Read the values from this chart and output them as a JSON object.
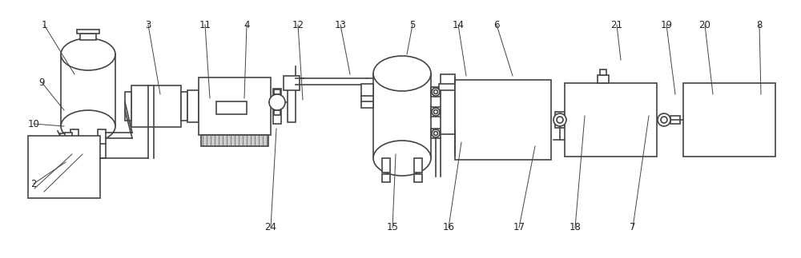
{
  "bg_color": "#ffffff",
  "line_color": "#444444",
  "line_width": 1.2,
  "thin_line": 0.7,
  "label_color": "#222222",
  "label_fontsize": 8.5,
  "fig_width": 10.0,
  "fig_height": 3.23
}
